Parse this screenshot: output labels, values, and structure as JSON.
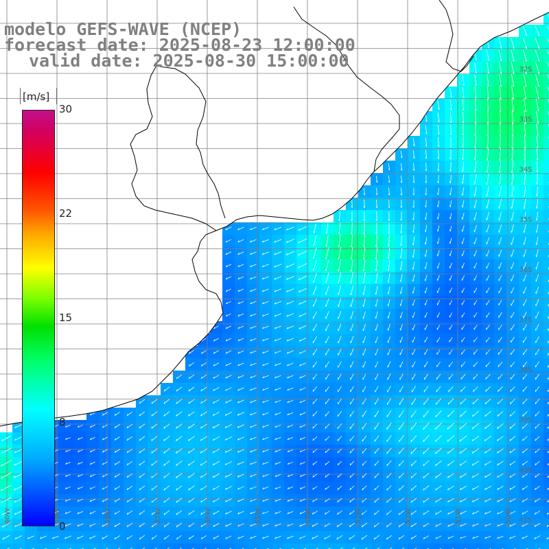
{
  "titles": {
    "line1": "modelo GEFS-WAVE (NCEP)",
    "line2": "forecast date: 2025-08-23 12:00:00",
    "line3": "valid date: 2025-08-30 15:00:00"
  },
  "colorbar": {
    "unit": "[m/s]",
    "min": 0,
    "max": 30,
    "labels": [
      "30",
      "22",
      "15",
      "8",
      "0"
    ]
  },
  "lat_labels": [
    "32S",
    "33S",
    "34S",
    "35S",
    "36S",
    "37S",
    "38S",
    "39S",
    "40S",
    "41S"
  ],
  "lon_labels": [
    "60W",
    "59W",
    "58W",
    "57W",
    "56W",
    "55W",
    "54W",
    "53W",
    "52W",
    "51W",
    "50W"
  ],
  "colors": {
    "land": "#ffffff",
    "coast": "#000000",
    "grid": "#808080",
    "arrows": "#ffffff",
    "title": "#808080"
  }
}
